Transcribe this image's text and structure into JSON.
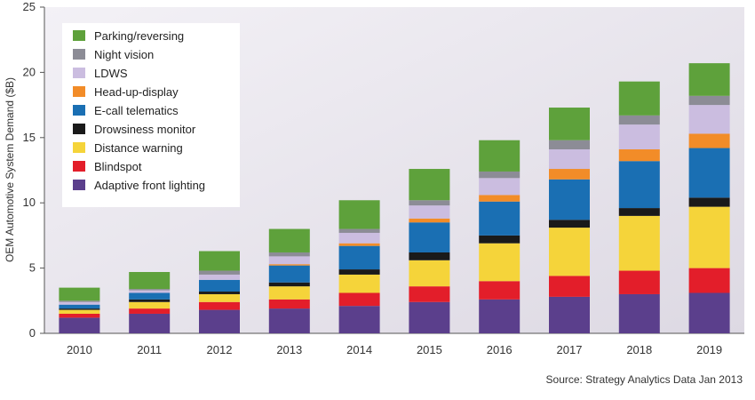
{
  "chart_data": {
    "type": "bar",
    "stacked": true,
    "categories": [
      "2010",
      "2011",
      "2012",
      "2013",
      "2014",
      "2015",
      "2016",
      "2017",
      "2018",
      "2019"
    ],
    "ylabel": "OEM Automotive System Demand ($B)",
    "xlabel": "",
    "ylim": [
      0,
      25
    ],
    "yticks": [
      0,
      5,
      10,
      15,
      20,
      25
    ],
    "grid": false,
    "legend_position": "top-left",
    "source": "Source: Strategy Analytics Data Jan 2013",
    "series": [
      {
        "name": "Adaptive front lighting",
        "color": "#5b3f8c",
        "values": [
          1.2,
          1.5,
          1.8,
          1.9,
          2.1,
          2.4,
          2.6,
          2.8,
          3.0,
          3.1
        ]
      },
      {
        "name": "Blindspot",
        "color": "#e31e2a",
        "values": [
          0.3,
          0.4,
          0.6,
          0.7,
          1.0,
          1.2,
          1.4,
          1.6,
          1.8,
          1.9
        ]
      },
      {
        "name": "Distance warning",
        "color": "#f5d43a",
        "values": [
          0.3,
          0.5,
          0.6,
          1.0,
          1.4,
          2.0,
          2.9,
          3.7,
          4.2,
          4.7
        ]
      },
      {
        "name": "Drowsiness monitor",
        "color": "#1a1a1a",
        "values": [
          0.1,
          0.2,
          0.2,
          0.3,
          0.4,
          0.6,
          0.6,
          0.6,
          0.6,
          0.7
        ]
      },
      {
        "name": "E-call telematics",
        "color": "#1a6fb3",
        "values": [
          0.3,
          0.5,
          0.9,
          1.3,
          1.8,
          2.3,
          2.6,
          3.1,
          3.6,
          3.8
        ]
      },
      {
        "name": "Head-up-display",
        "color": "#f28c28",
        "values": [
          0.0,
          0.0,
          0.0,
          0.1,
          0.2,
          0.3,
          0.5,
          0.8,
          0.9,
          1.1
        ]
      },
      {
        "name": "LDWS",
        "color": "#cbbde0",
        "values": [
          0.2,
          0.2,
          0.4,
          0.6,
          0.8,
          1.0,
          1.3,
          1.5,
          1.9,
          2.2
        ]
      },
      {
        "name": "Night vision",
        "color": "#8c8c96",
        "values": [
          0.1,
          0.1,
          0.3,
          0.3,
          0.3,
          0.4,
          0.5,
          0.7,
          0.7,
          0.7
        ]
      },
      {
        "name": "Parking/reversing",
        "color": "#5ea13b",
        "values": [
          1.0,
          1.3,
          1.5,
          1.8,
          2.2,
          2.4,
          2.4,
          2.5,
          2.6,
          2.5
        ]
      }
    ]
  }
}
